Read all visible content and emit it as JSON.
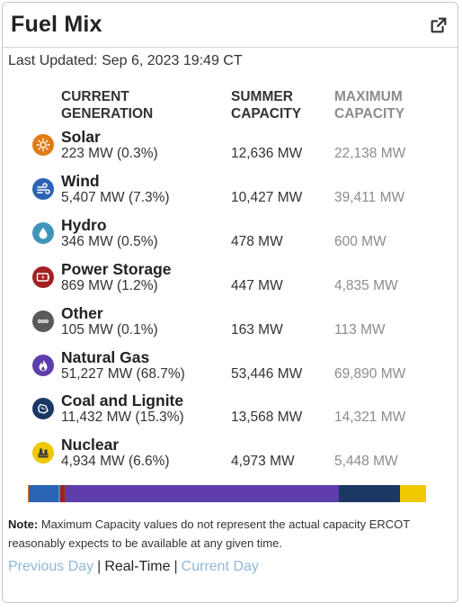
{
  "header": {
    "title": "Fuel Mix",
    "external_icon": "external-link-icon"
  },
  "last_updated": "Last Updated: Sep 6, 2023 19:49 CT",
  "columns": {
    "current": "CURRENT GENERATION",
    "summer": "SUMMER CAPACITY",
    "maximum": "MAXIMUM CAPACITY"
  },
  "fuels": [
    {
      "name": "Solar",
      "generation": "223 MW (0.3%)",
      "summer": "12,636 MW",
      "maximum": "22,138 MW",
      "icon": "sun-icon",
      "color": "#e07b16",
      "share": 0.3
    },
    {
      "name": "Wind",
      "generation": "5,407 MW (7.3%)",
      "summer": "10,427 MW",
      "maximum": "39,411 MW",
      "icon": "wind-icon",
      "color": "#2c64b5",
      "share": 7.3
    },
    {
      "name": "Hydro",
      "generation": "346 MW (0.5%)",
      "summer": "478 MW",
      "maximum": "600 MW",
      "icon": "water-drop-icon",
      "color": "#3f95b8",
      "share": 0.5
    },
    {
      "name": "Power Storage",
      "generation": "869 MW (1.2%)",
      "summer": "447 MW",
      "maximum": "4,835 MW",
      "icon": "battery-icon",
      "color": "#a31f24",
      "share": 1.2
    },
    {
      "name": "Other",
      "generation": "105 MW (0.1%)",
      "summer": "163 MW",
      "maximum": "113 MW",
      "icon": "more-dots-icon",
      "color": "#5a5a5a",
      "share": 0.1
    },
    {
      "name": "Natural Gas",
      "generation": "51,227 MW (68.7%)",
      "summer": "53,446 MW",
      "maximum": "69,890 MW",
      "icon": "flame-icon",
      "color": "#5f3dab",
      "share": 68.7
    },
    {
      "name": "Coal and Lignite",
      "generation": "11,432 MW (15.3%)",
      "summer": "13,568 MW",
      "maximum": "14,321 MW",
      "icon": "coal-icon",
      "color": "#1b3864",
      "share": 15.3
    },
    {
      "name": "Nuclear",
      "generation": "4,934 MW (6.6%)",
      "summer": "4,973 MW",
      "maximum": "5,448 MW",
      "icon": "nuclear-plant-icon",
      "color": "#f0c800",
      "share": 6.6
    }
  ],
  "note": {
    "label": "Note:",
    "text": " Maximum Capacity values do not represent the actual capacity ERCOT reasonably expects to be available at any given time."
  },
  "links": {
    "previous": "Previous Day",
    "realtime": "Real-Time",
    "current": "Current Day",
    "separator": "|"
  }
}
